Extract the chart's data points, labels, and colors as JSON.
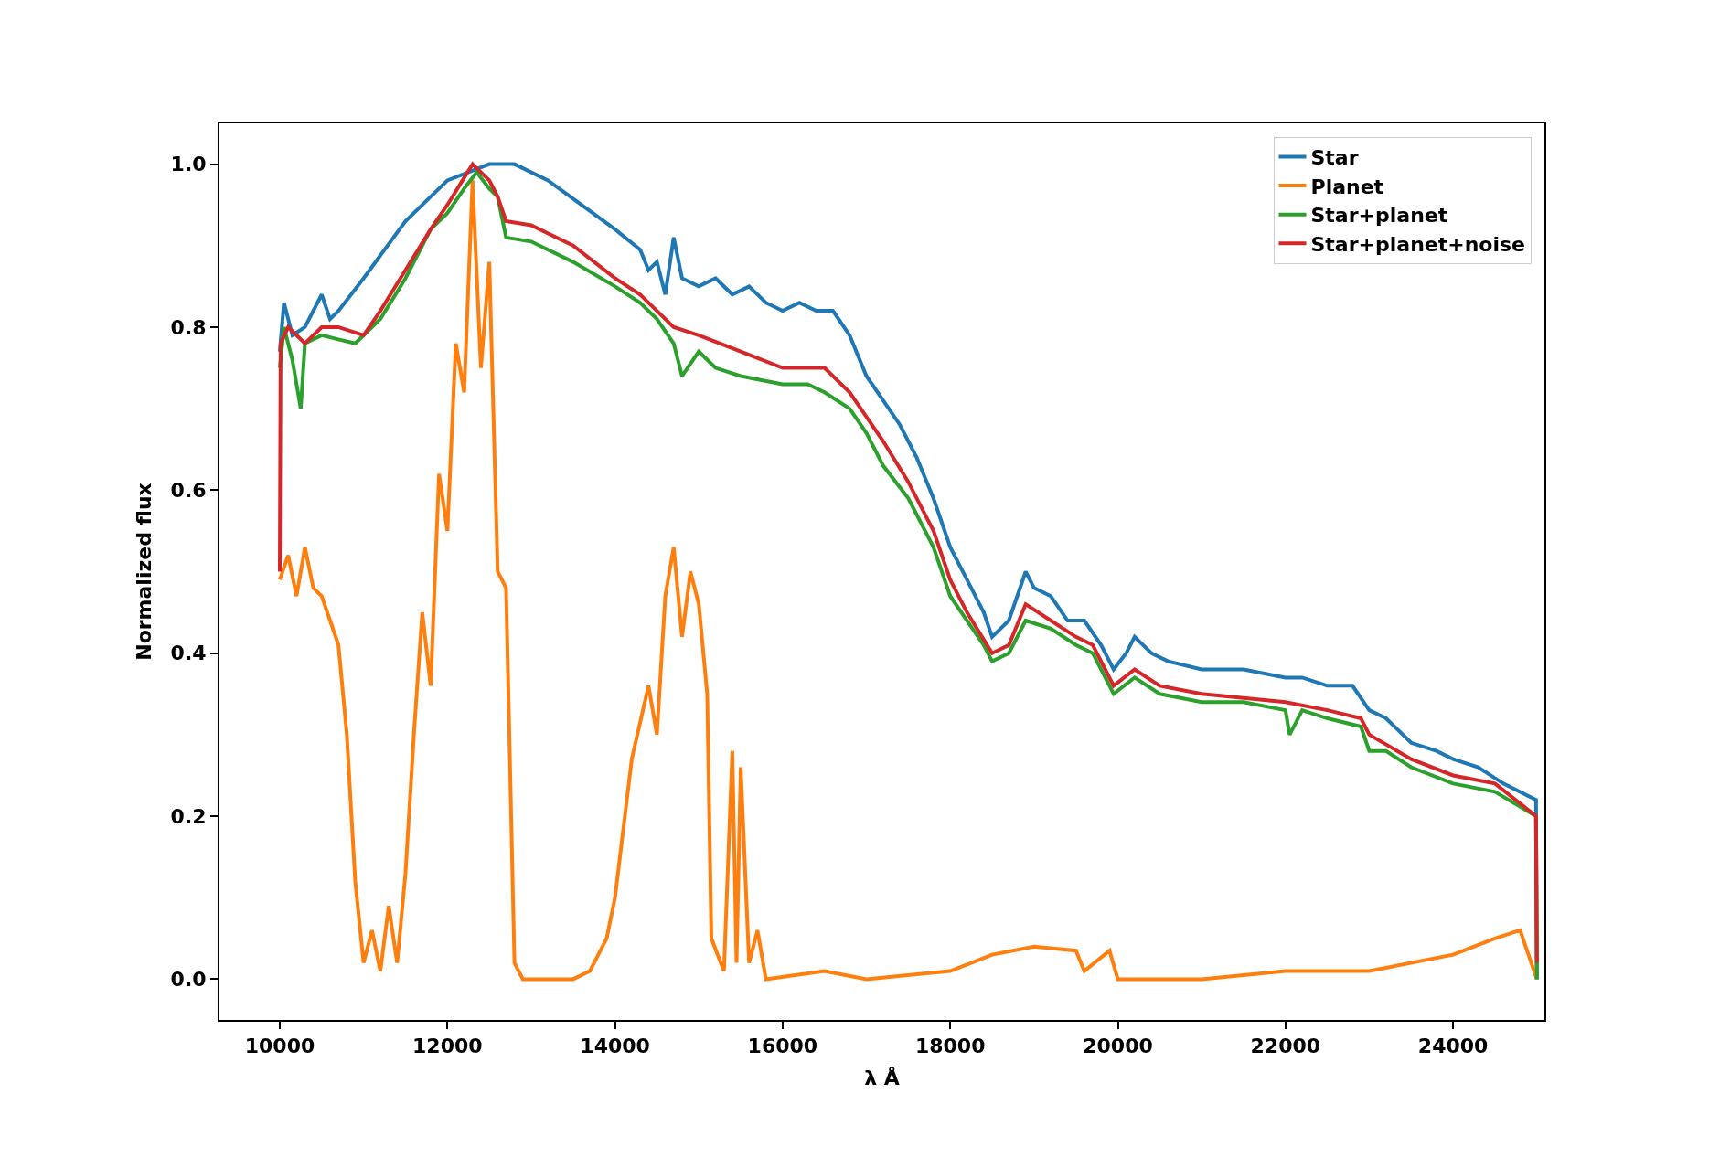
{
  "chart_data": {
    "type": "line",
    "xlabel": "λ Å",
    "ylabel": "Normalized flux",
    "xlim": [
      9280,
      25090
    ],
    "ylim": [
      -0.05,
      1.05
    ],
    "xticks": [
      10000,
      12000,
      14000,
      16000,
      18000,
      20000,
      22000,
      24000
    ],
    "yticks": [
      {
        "value": 0,
        "label": "0.0"
      },
      {
        "value": 0.2,
        "label": "0.2"
      },
      {
        "value": 0.4,
        "label": "0.4"
      },
      {
        "value": 0.6,
        "label": "0.6"
      },
      {
        "value": 0.8,
        "label": "0.8"
      },
      {
        "value": 1,
        "label": "1.0"
      }
    ],
    "legend": "top right",
    "marker": "none",
    "line_style": "solid",
    "series": [
      {
        "name": "Star",
        "color": "#1f77b4",
        "x": [
          10000,
          10050,
          10150,
          10300,
          10500,
          10600,
          10700,
          11000,
          11500,
          12000,
          12500,
          12800,
          13200,
          13600,
          14000,
          14300,
          14400,
          14500,
          14600,
          14700,
          14800,
          15000,
          15200,
          15400,
          15600,
          15800,
          16000,
          16200,
          16400,
          16600,
          16800,
          17000,
          17200,
          17400,
          17600,
          17800,
          18000,
          18200,
          18400,
          18500,
          18700,
          18900,
          19000,
          19200,
          19400,
          19600,
          19800,
          19950,
          20100,
          20200,
          20400,
          20600,
          21000,
          21500,
          22000,
          22200,
          22500,
          22800,
          23000,
          23200,
          23500,
          23800,
          24000,
          24300,
          24600,
          24990,
          25000
        ],
        "values": [
          0.77,
          0.83,
          0.79,
          0.8,
          0.84,
          0.81,
          0.82,
          0.86,
          0.93,
          0.98,
          1.0,
          1.0,
          0.98,
          0.95,
          0.92,
          0.895,
          0.87,
          0.88,
          0.84,
          0.91,
          0.86,
          0.85,
          0.86,
          0.84,
          0.85,
          0.83,
          0.82,
          0.83,
          0.82,
          0.82,
          0.79,
          0.74,
          0.71,
          0.68,
          0.64,
          0.59,
          0.53,
          0.49,
          0.45,
          0.42,
          0.44,
          0.5,
          0.48,
          0.47,
          0.44,
          0.44,
          0.41,
          0.38,
          0.4,
          0.42,
          0.4,
          0.39,
          0.38,
          0.38,
          0.37,
          0.37,
          0.36,
          0.36,
          0.33,
          0.32,
          0.29,
          0.28,
          0.27,
          0.26,
          0.24,
          0.22,
          0.0
        ]
      },
      {
        "name": "Planet",
        "color": "#ff7f0e",
        "x": [
          10000,
          10100,
          10200,
          10300,
          10400,
          10500,
          10600,
          10700,
          10800,
          10900,
          11000,
          11100,
          11200,
          11300,
          11400,
          11500,
          11600,
          11700,
          11800,
          11900,
          12000,
          12100,
          12200,
          12300,
          12400,
          12500,
          12600,
          12700,
          12800,
          12900,
          13500,
          13700,
          13900,
          14000,
          14200,
          14400,
          14500,
          14600,
          14700,
          14800,
          14900,
          15000,
          15100,
          15150,
          15300,
          15400,
          15450,
          15500,
          15600,
          15700,
          15800,
          16500,
          17000,
          18000,
          18500,
          19000,
          19500,
          19600,
          19900,
          20000,
          21000,
          22000,
          23000,
          24000,
          24500,
          24800,
          25000
        ],
        "values": [
          0.49,
          0.52,
          0.47,
          0.53,
          0.48,
          0.47,
          0.44,
          0.41,
          0.3,
          0.12,
          0.02,
          0.06,
          0.01,
          0.09,
          0.02,
          0.13,
          0.3,
          0.45,
          0.36,
          0.62,
          0.55,
          0.78,
          0.72,
          0.98,
          0.75,
          0.88,
          0.5,
          0.48,
          0.02,
          0.0,
          0.0,
          0.01,
          0.05,
          0.1,
          0.27,
          0.36,
          0.3,
          0.47,
          0.53,
          0.42,
          0.5,
          0.46,
          0.35,
          0.05,
          0.01,
          0.28,
          0.02,
          0.26,
          0.02,
          0.06,
          0.0,
          0.01,
          0.0,
          0.01,
          0.03,
          0.04,
          0.035,
          0.01,
          0.035,
          0.0,
          0.0,
          0.01,
          0.01,
          0.03,
          0.05,
          0.06,
          0.0
        ]
      },
      {
        "name": "Star+planet",
        "color": "#2ca02c",
        "x": [
          10000,
          10050,
          10150,
          10250,
          10300,
          10500,
          10700,
          10900,
          11200,
          11500,
          11800,
          12000,
          12200,
          12350,
          12500,
          12600,
          12700,
          13000,
          13500,
          14000,
          14300,
          14500,
          14700,
          14800,
          15000,
          15200,
          15500,
          16000,
          16300,
          16500,
          16800,
          17000,
          17200,
          17500,
          17800,
          18000,
          18200,
          18400,
          18500,
          18700,
          18900,
          19200,
          19500,
          19700,
          19950,
          20200,
          20500,
          21000,
          21500,
          22000,
          22050,
          22200,
          22500,
          22900,
          23000,
          23200,
          23500,
          24000,
          24500,
          24990,
          25000
        ],
        "values": [
          0.75,
          0.8,
          0.76,
          0.7,
          0.78,
          0.79,
          0.785,
          0.78,
          0.81,
          0.86,
          0.92,
          0.94,
          0.97,
          0.99,
          0.97,
          0.96,
          0.91,
          0.905,
          0.88,
          0.85,
          0.83,
          0.81,
          0.78,
          0.74,
          0.77,
          0.75,
          0.74,
          0.73,
          0.73,
          0.72,
          0.7,
          0.67,
          0.63,
          0.59,
          0.53,
          0.47,
          0.44,
          0.41,
          0.39,
          0.4,
          0.44,
          0.43,
          0.41,
          0.4,
          0.35,
          0.37,
          0.35,
          0.34,
          0.34,
          0.33,
          0.3,
          0.33,
          0.32,
          0.31,
          0.28,
          0.28,
          0.26,
          0.24,
          0.23,
          0.2,
          0.0
        ]
      },
      {
        "name": "Star+planet+noise",
        "color": "#d62728",
        "x": [
          10000,
          10010,
          10100,
          10300,
          10500,
          10700,
          11000,
          11200,
          11500,
          11800,
          12000,
          12300,
          12500,
          12600,
          12700,
          13000,
          13500,
          14000,
          14300,
          14500,
          14700,
          15000,
          15500,
          16000,
          16500,
          16800,
          17000,
          17200,
          17500,
          17800,
          18000,
          18200,
          18500,
          18700,
          18900,
          19200,
          19500,
          19700,
          19950,
          20200,
          20500,
          21000,
          21500,
          22000,
          22500,
          22900,
          23000,
          23500,
          24000,
          24500,
          24990,
          25000
        ],
        "values": [
          0.5,
          0.78,
          0.8,
          0.78,
          0.8,
          0.8,
          0.79,
          0.82,
          0.87,
          0.92,
          0.95,
          1.0,
          0.98,
          0.96,
          0.93,
          0.925,
          0.9,
          0.86,
          0.84,
          0.82,
          0.8,
          0.79,
          0.77,
          0.75,
          0.75,
          0.72,
          0.69,
          0.66,
          0.61,
          0.55,
          0.49,
          0.45,
          0.4,
          0.41,
          0.46,
          0.44,
          0.42,
          0.41,
          0.36,
          0.38,
          0.36,
          0.35,
          0.345,
          0.34,
          0.33,
          0.32,
          0.3,
          0.27,
          0.25,
          0.24,
          0.2,
          0.02
        ]
      }
    ]
  }
}
